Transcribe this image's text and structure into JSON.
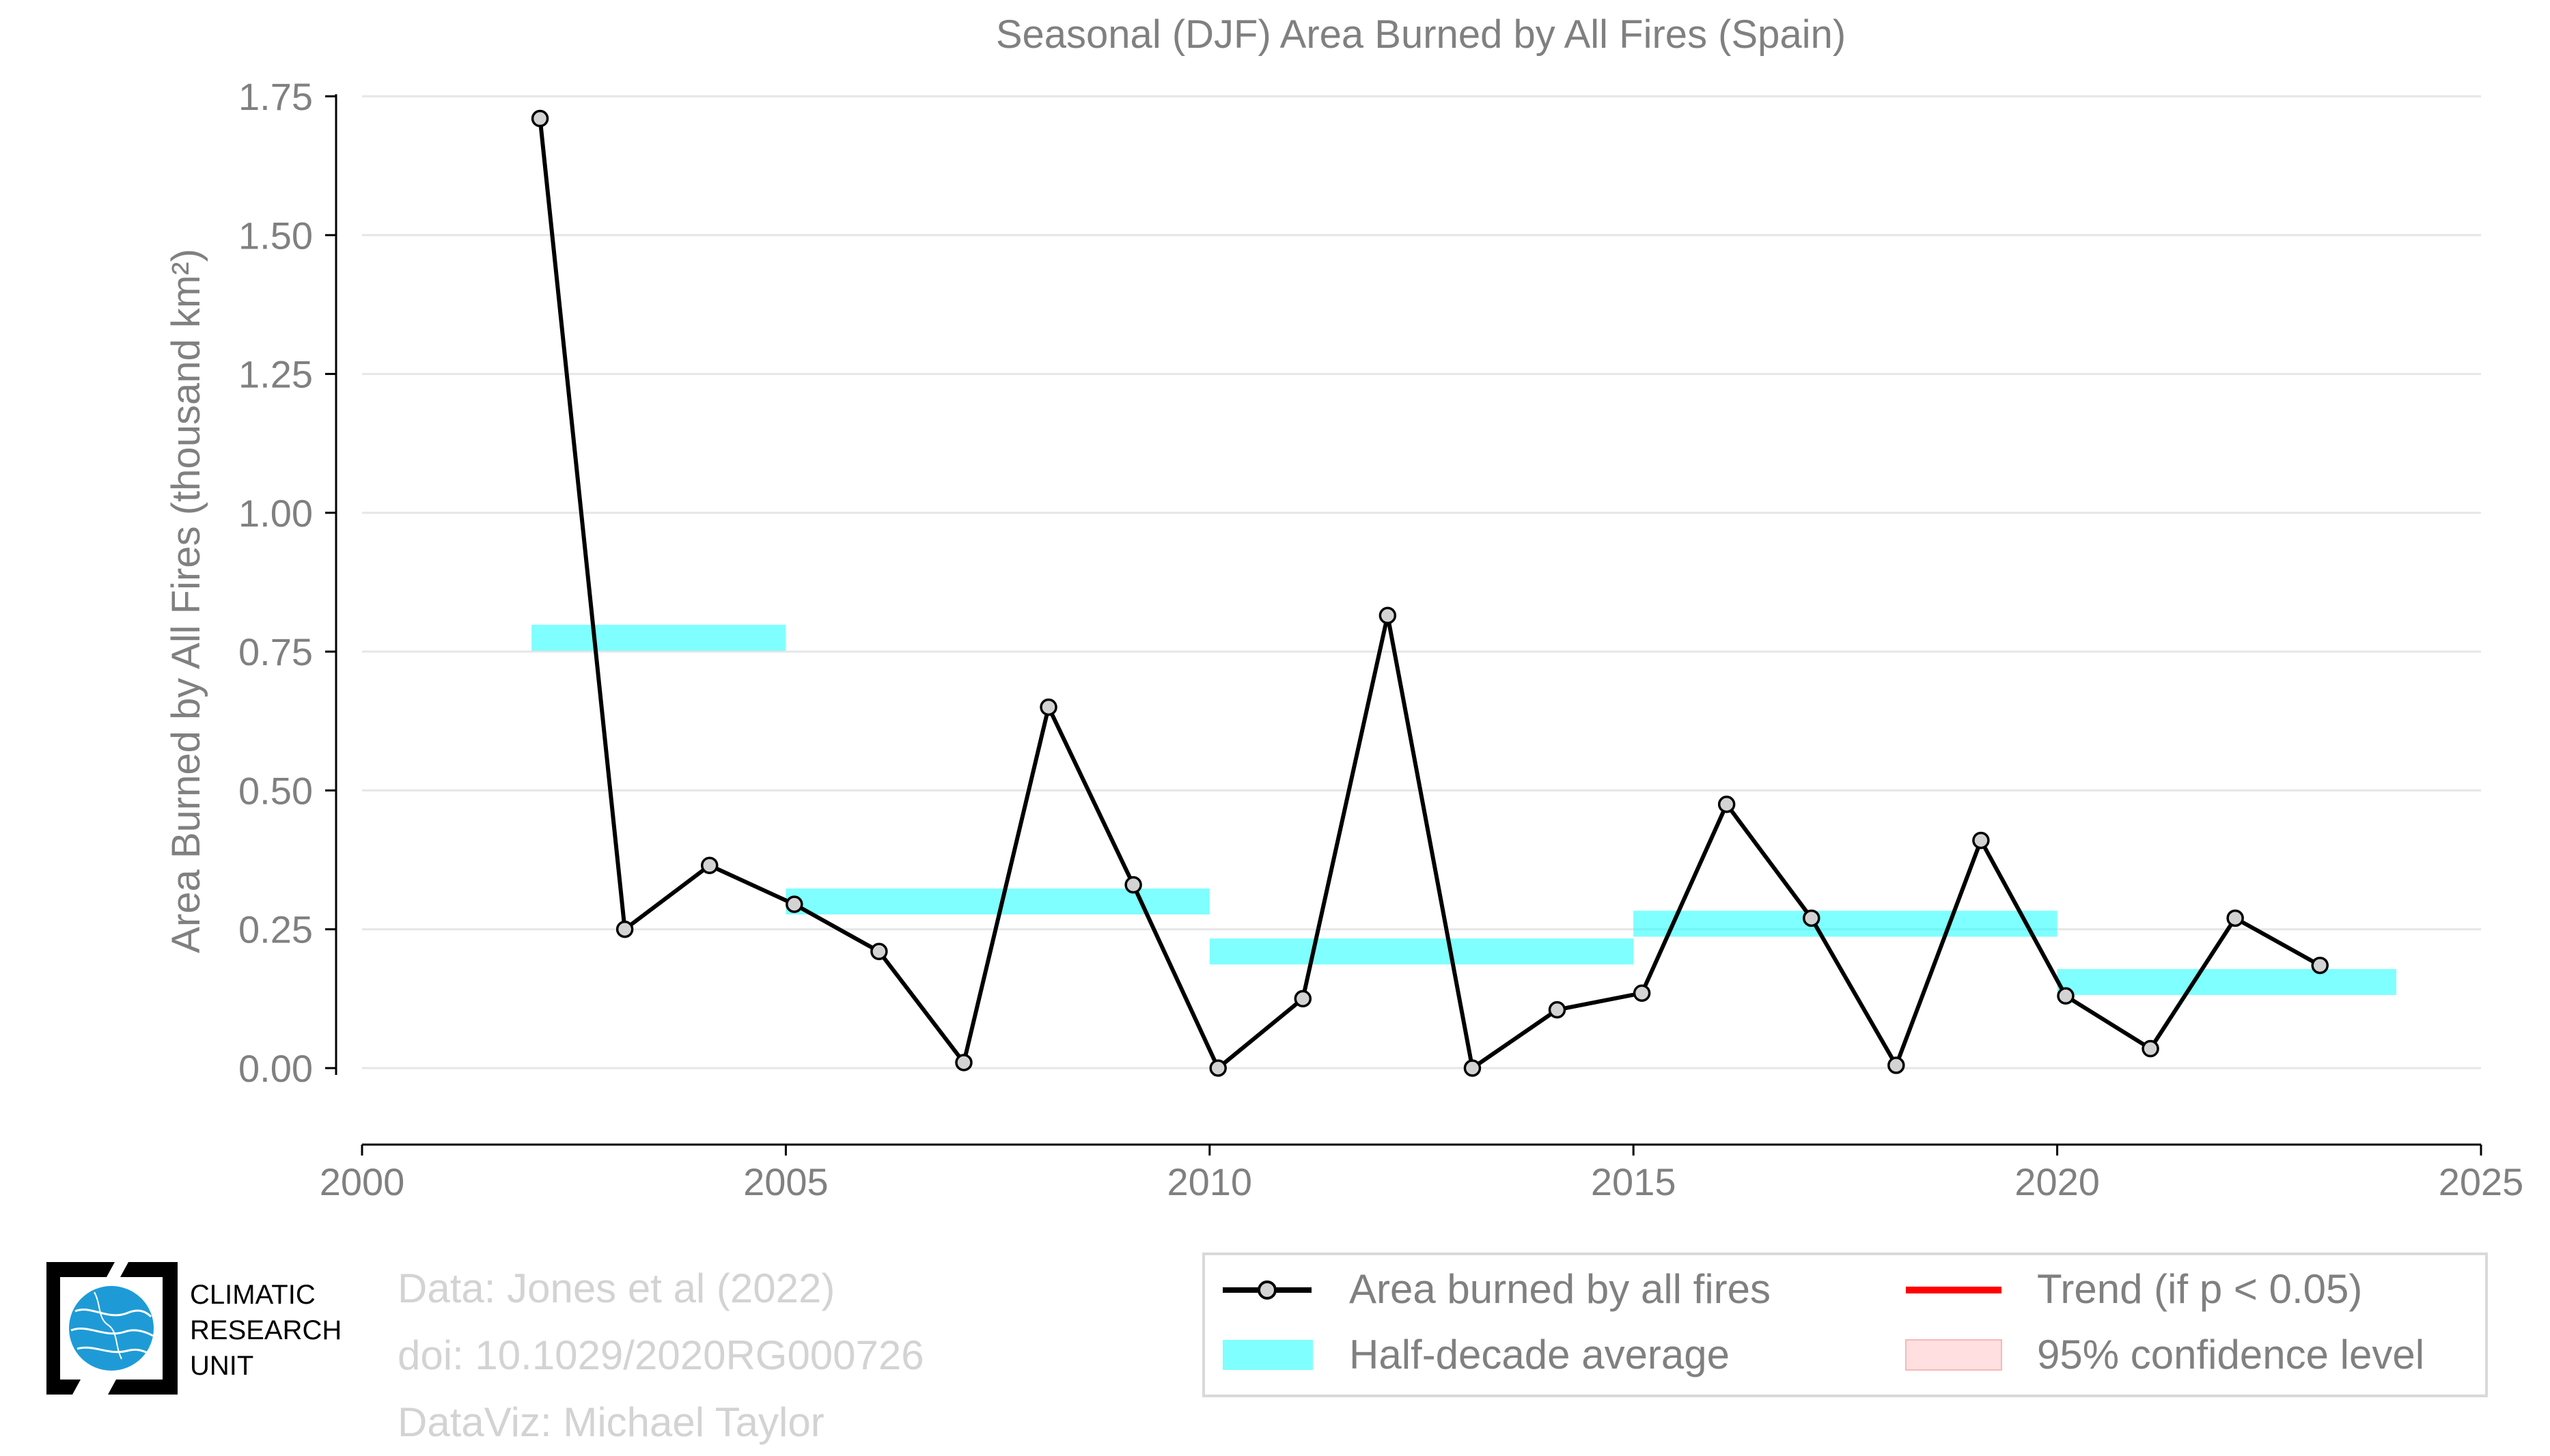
{
  "chart_data": {
    "type": "line",
    "title": "Seasonal (DJF) Area Burned by All Fires (Spain)",
    "ylabel": "Area Burned by All Fires (thousand km²)",
    "xlabel": "",
    "xlim": [
      2000,
      2025
    ],
    "ylim": [
      -0.14,
      1.79
    ],
    "x_ticks": [
      2000,
      2005,
      2010,
      2015,
      2020,
      2025
    ],
    "y_ticks": [
      0.0,
      0.25,
      0.5,
      0.75,
      1.0,
      1.25,
      1.5,
      1.75
    ],
    "y_tick_labels": [
      "0.00",
      "0.25",
      "0.50",
      "0.75",
      "1.00",
      "1.25",
      "1.50",
      "1.75"
    ],
    "grid": "horizontal",
    "series": [
      {
        "name": "Area burned by all fires",
        "color": "#000000",
        "marker_fill": "#d3d3d3",
        "x": [
          2002,
          2003,
          2004,
          2005,
          2006,
          2007,
          2008,
          2009,
          2010,
          2011,
          2012,
          2013,
          2014,
          2015,
          2016,
          2017,
          2018,
          2019,
          2020,
          2021,
          2022,
          2023
        ],
        "values": [
          1.71,
          0.25,
          0.365,
          0.295,
          0.21,
          0.01,
          0.65,
          0.33,
          0.0,
          0.125,
          0.815,
          0.0,
          0.105,
          0.135,
          0.475,
          0.27,
          0.005,
          0.41,
          0.13,
          0.035,
          0.27,
          0.185
        ]
      }
    ],
    "half_decade_average": {
      "name": "Half-decade average",
      "color": "#00ffff",
      "segments": [
        {
          "x0": 2002,
          "x1": 2005,
          "value": 0.775
        },
        {
          "x0": 2005,
          "x1": 2010,
          "value": 0.3
        },
        {
          "x0": 2010,
          "x1": 2015,
          "value": 0.21
        },
        {
          "x0": 2015,
          "x1": 2020,
          "value": 0.26
        },
        {
          "x0": 2020,
          "x1": 2024,
          "value": 0.155
        }
      ]
    },
    "legend": {
      "placement": "bottom-right",
      "items": [
        {
          "label": "Area burned by all fires",
          "kind": "line-marker",
          "color": "#000000"
        },
        {
          "label": "Trend (if p < 0.05)",
          "kind": "line",
          "color": "#ff0000"
        },
        {
          "label": "Half-decade average",
          "kind": "band",
          "color": "#00ffff"
        },
        {
          "label": "95% confidence level",
          "kind": "band",
          "color": "#ffc0c0"
        }
      ]
    }
  },
  "credits": {
    "line1": "Data: Jones et al (2022)",
    "line2": "doi: 10.1029/2020RG000726",
    "line3": "DataViz: Michael Taylor"
  },
  "logo": {
    "line1": "CLIMATIC",
    "line2": "RESEARCH",
    "line3": "UNIT"
  },
  "colors": {
    "text_gray": "#808080",
    "grid": "#e6e6e6",
    "axis": "#000000",
    "logo_blue": "#1e9bd7"
  }
}
